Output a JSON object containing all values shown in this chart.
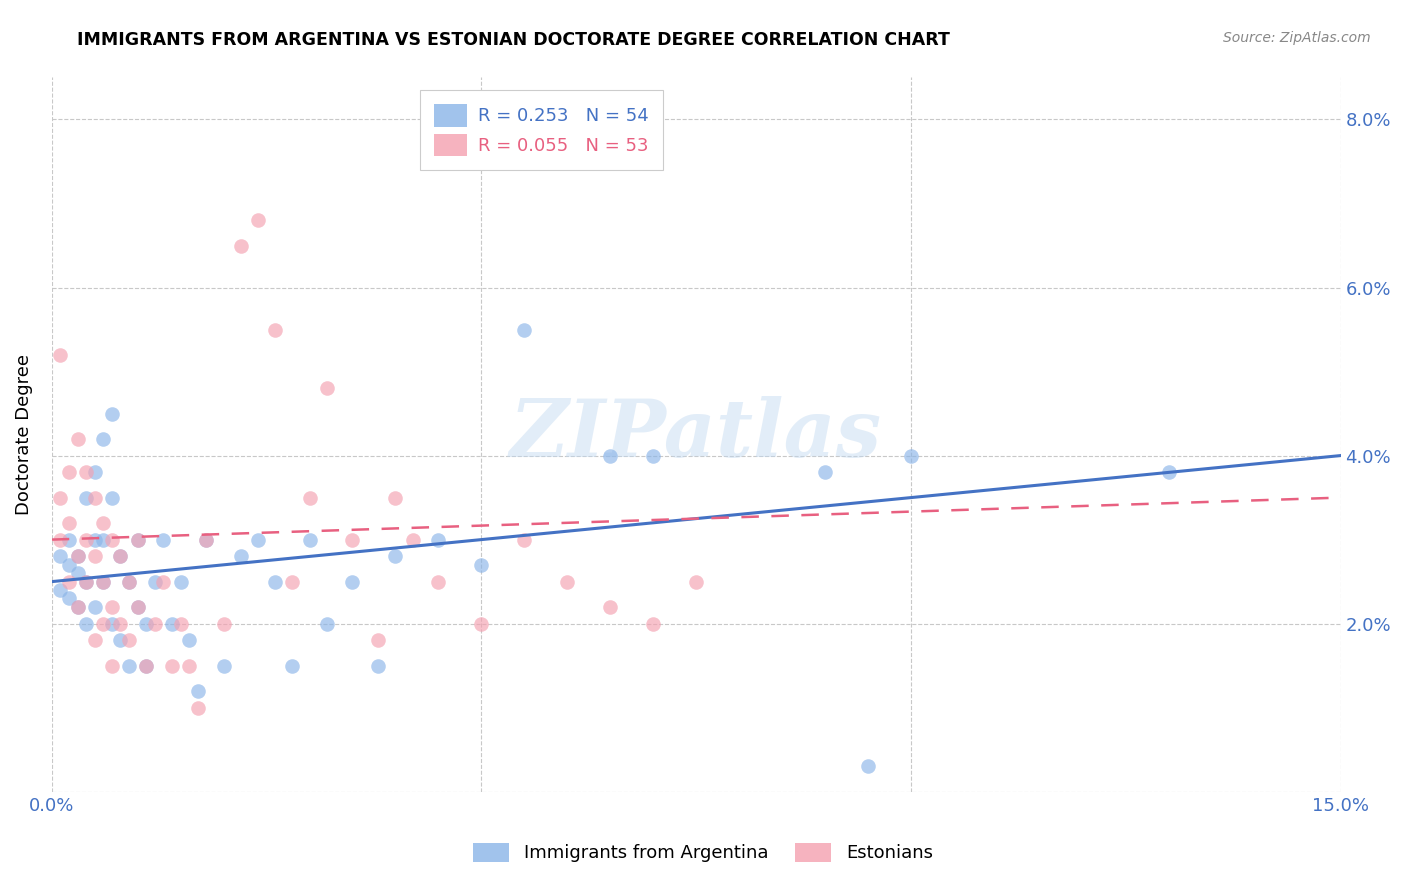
{
  "title": "IMMIGRANTS FROM ARGENTINA VS ESTONIAN DOCTORATE DEGREE CORRELATION CHART",
  "source": "Source: ZipAtlas.com",
  "ylabel": "Doctorate Degree",
  "xmin": 0.0,
  "xmax": 0.15,
  "ymin": 0.0,
  "ymax": 0.085,
  "yticks": [
    0.0,
    0.02,
    0.04,
    0.06,
    0.08
  ],
  "ytick_labels": [
    "",
    "2.0%",
    "4.0%",
    "6.0%",
    "8.0%"
  ],
  "xticks": [
    0.0,
    0.05,
    0.1,
    0.15
  ],
  "xtick_labels": [
    "0.0%",
    "",
    "",
    "15.0%"
  ],
  "blue_label": "Immigrants from Argentina",
  "pink_label": "Estonians",
  "blue_color": "#8ab4e8",
  "pink_color": "#f4a0b0",
  "blue_line_color": "#4472C4",
  "pink_line_color": "#E86080",
  "tick_color": "#4472C4",
  "watermark": "ZIPatlas",
  "blue_r": 0.253,
  "blue_n": 54,
  "pink_r": 0.055,
  "pink_n": 53,
  "blue_x": [
    0.001,
    0.001,
    0.002,
    0.002,
    0.002,
    0.003,
    0.003,
    0.003,
    0.004,
    0.004,
    0.004,
    0.005,
    0.005,
    0.005,
    0.006,
    0.006,
    0.006,
    0.007,
    0.007,
    0.007,
    0.008,
    0.008,
    0.009,
    0.009,
    0.01,
    0.01,
    0.011,
    0.011,
    0.012,
    0.013,
    0.014,
    0.015,
    0.016,
    0.017,
    0.018,
    0.02,
    0.022,
    0.024,
    0.026,
    0.028,
    0.03,
    0.032,
    0.035,
    0.038,
    0.04,
    0.045,
    0.05,
    0.055,
    0.065,
    0.07,
    0.09,
    0.095,
    0.1,
    0.13
  ],
  "blue_y": [
    0.028,
    0.024,
    0.027,
    0.023,
    0.03,
    0.026,
    0.022,
    0.028,
    0.035,
    0.025,
    0.02,
    0.03,
    0.038,
    0.022,
    0.042,
    0.025,
    0.03,
    0.045,
    0.035,
    0.02,
    0.028,
    0.018,
    0.025,
    0.015,
    0.03,
    0.022,
    0.02,
    0.015,
    0.025,
    0.03,
    0.02,
    0.025,
    0.018,
    0.012,
    0.03,
    0.015,
    0.028,
    0.03,
    0.025,
    0.015,
    0.03,
    0.02,
    0.025,
    0.015,
    0.028,
    0.03,
    0.027,
    0.055,
    0.04,
    0.04,
    0.038,
    0.003,
    0.04,
    0.038
  ],
  "pink_x": [
    0.001,
    0.001,
    0.001,
    0.002,
    0.002,
    0.002,
    0.003,
    0.003,
    0.003,
    0.004,
    0.004,
    0.004,
    0.005,
    0.005,
    0.005,
    0.006,
    0.006,
    0.006,
    0.007,
    0.007,
    0.007,
    0.008,
    0.008,
    0.009,
    0.009,
    0.01,
    0.01,
    0.011,
    0.012,
    0.013,
    0.014,
    0.015,
    0.016,
    0.017,
    0.018,
    0.02,
    0.022,
    0.024,
    0.026,
    0.028,
    0.03,
    0.032,
    0.035,
    0.038,
    0.04,
    0.042,
    0.045,
    0.05,
    0.055,
    0.06,
    0.065,
    0.07,
    0.075
  ],
  "pink_y": [
    0.052,
    0.035,
    0.03,
    0.038,
    0.032,
    0.025,
    0.042,
    0.028,
    0.022,
    0.038,
    0.03,
    0.025,
    0.035,
    0.028,
    0.018,
    0.032,
    0.025,
    0.02,
    0.03,
    0.022,
    0.015,
    0.028,
    0.02,
    0.025,
    0.018,
    0.03,
    0.022,
    0.015,
    0.02,
    0.025,
    0.015,
    0.02,
    0.015,
    0.01,
    0.03,
    0.02,
    0.065,
    0.068,
    0.055,
    0.025,
    0.035,
    0.048,
    0.03,
    0.018,
    0.035,
    0.03,
    0.025,
    0.02,
    0.03,
    0.025,
    0.022,
    0.02,
    0.025
  ]
}
